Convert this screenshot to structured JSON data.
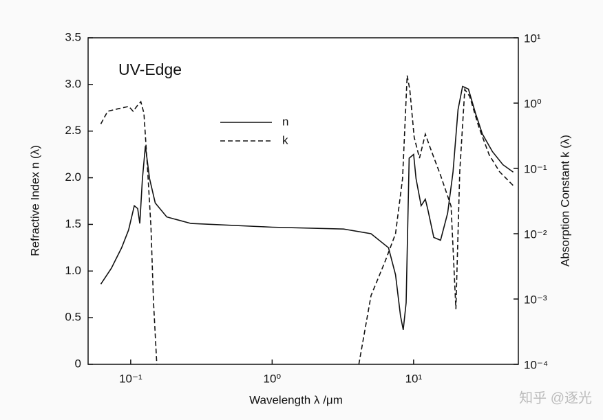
{
  "chart_data": {
    "type": "line",
    "annotation": "UV-Edge",
    "xlabel": "Wavelength λ /μm",
    "ylabel": "Refractive Index n (λ)",
    "y2label": "Absorption Constant k (λ)",
    "watermark": "知乎 @逐光",
    "xlog": true,
    "y2log": true,
    "legend": "upper-center",
    "xlim": [
      0.05,
      55
    ],
    "xticks": [
      {
        "value": 0.1,
        "label": "10⁻¹"
      },
      {
        "value": 1,
        "label": "10⁰"
      },
      {
        "value": 10,
        "label": "10¹"
      }
    ],
    "ylim": [
      0,
      3.5
    ],
    "yticks": [
      0,
      0.5,
      {
        "value": 1,
        "label": "1.0"
      },
      1.5,
      {
        "value": 2,
        "label": "2.0"
      },
      2.5,
      {
        "value": 3,
        "label": "3.0"
      },
      3.5
    ],
    "y2lim": [
      0.0001,
      10
    ],
    "y2ticks": [
      {
        "value": 10,
        "label": "10¹"
      },
      {
        "value": 1,
        "label": "10⁰"
      },
      {
        "value": 0.1,
        "label": "10⁻¹"
      },
      {
        "value": 0.01,
        "label": "10⁻²"
      },
      {
        "value": 0.001,
        "label": "10⁻³"
      },
      {
        "value": 0.0001,
        "label": "10⁻⁴"
      }
    ],
    "series": [
      {
        "name": "n",
        "color": "#111111",
        "dashed": false,
        "x": [
          0.0615,
          0.073,
          0.0863,
          0.0966,
          0.106,
          0.112,
          0.116,
          0.121,
          0.127,
          0.136,
          0.149,
          0.18,
          0.267,
          1.0,
          3.2,
          5.0,
          6.65,
          7.45,
          8.08,
          8.45,
          8.85,
          9.3,
          10,
          10.4,
          11.3,
          12.1,
          12.6,
          13.9,
          15.5,
          17.4,
          19.0,
          20.6,
          22.2,
          24.4,
          27.4,
          30.6,
          36.1,
          42.8,
          50.6
        ],
        "values": [
          0.86,
          1.03,
          1.25,
          1.44,
          1.7,
          1.67,
          1.51,
          1.99,
          2.34,
          1.99,
          1.73,
          1.58,
          1.51,
          1.47,
          1.45,
          1.4,
          1.25,
          0.96,
          0.52,
          0.37,
          0.66,
          2.21,
          2.25,
          1.99,
          1.7,
          1.77,
          1.66,
          1.36,
          1.33,
          1.62,
          2.06,
          2.73,
          2.98,
          2.95,
          2.69,
          2.47,
          2.28,
          2.14,
          2.06
        ]
      },
      {
        "name": "k",
        "color": "#111111",
        "dashed": true,
        "axis": "y2",
        "x": [
          0.0615,
          0.0687,
          0.0816,
          0.097,
          0.104,
          0.112,
          0.118,
          0.124,
          0.132,
          0.139,
          0.145,
          0.153,
          1.0,
          4.1,
          5.0,
          6.3,
          7.45,
          8.35,
          9.0,
          9.4,
          10.1,
          11.0,
          12.1,
          13.1,
          15.5,
          18.4,
          19.9,
          21.2,
          23.0,
          24.9,
          28.9,
          34.2,
          40.5,
          50.6
        ],
        "values": [
          0.48,
          0.75,
          0.82,
          0.89,
          0.75,
          0.93,
          1.05,
          0.7,
          0.089,
          0.0127,
          0.0009,
          0.0001,
          null,
          0.0001,
          0.00113,
          0.0038,
          0.01,
          0.0695,
          2.64,
          1.62,
          0.3,
          0.144,
          0.336,
          0.207,
          0.0785,
          0.0264,
          0.0007,
          0.089,
          1.62,
          1.27,
          0.43,
          0.162,
          0.089,
          0.0546
        ]
      }
    ]
  }
}
